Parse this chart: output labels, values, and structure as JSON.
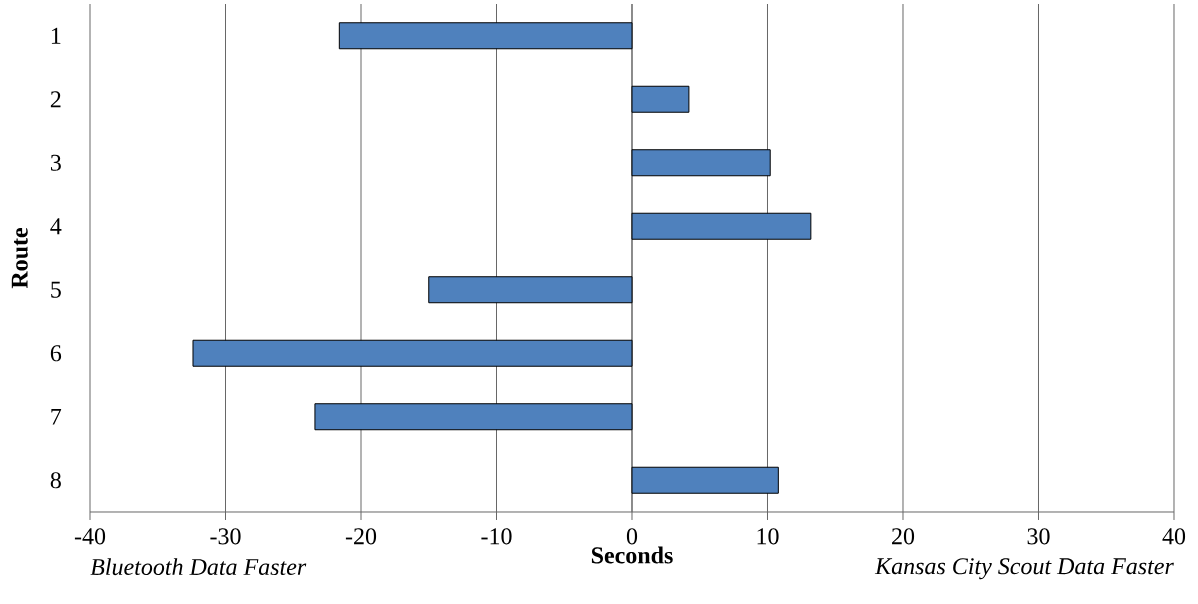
{
  "chart_data": {
    "type": "bar",
    "orientation": "horizontal",
    "xlabel": "Seconds",
    "ylabel": "Route",
    "categories": [
      "1",
      "2",
      "3",
      "4",
      "5",
      "6",
      "7",
      "8"
    ],
    "values": [
      -21.6,
      4.2,
      10.2,
      13.2,
      -15.0,
      -32.4,
      -23.4,
      10.8
    ],
    "color": "#4f81bd",
    "xlim": [
      -40,
      40
    ],
    "xticks": [
      -40,
      -30,
      -20,
      -10,
      0,
      10,
      20,
      30,
      40
    ],
    "grid": "x",
    "annotations": [
      "Bluetooth Data Faster",
      "Kansas City Scout Data Faster"
    ]
  }
}
